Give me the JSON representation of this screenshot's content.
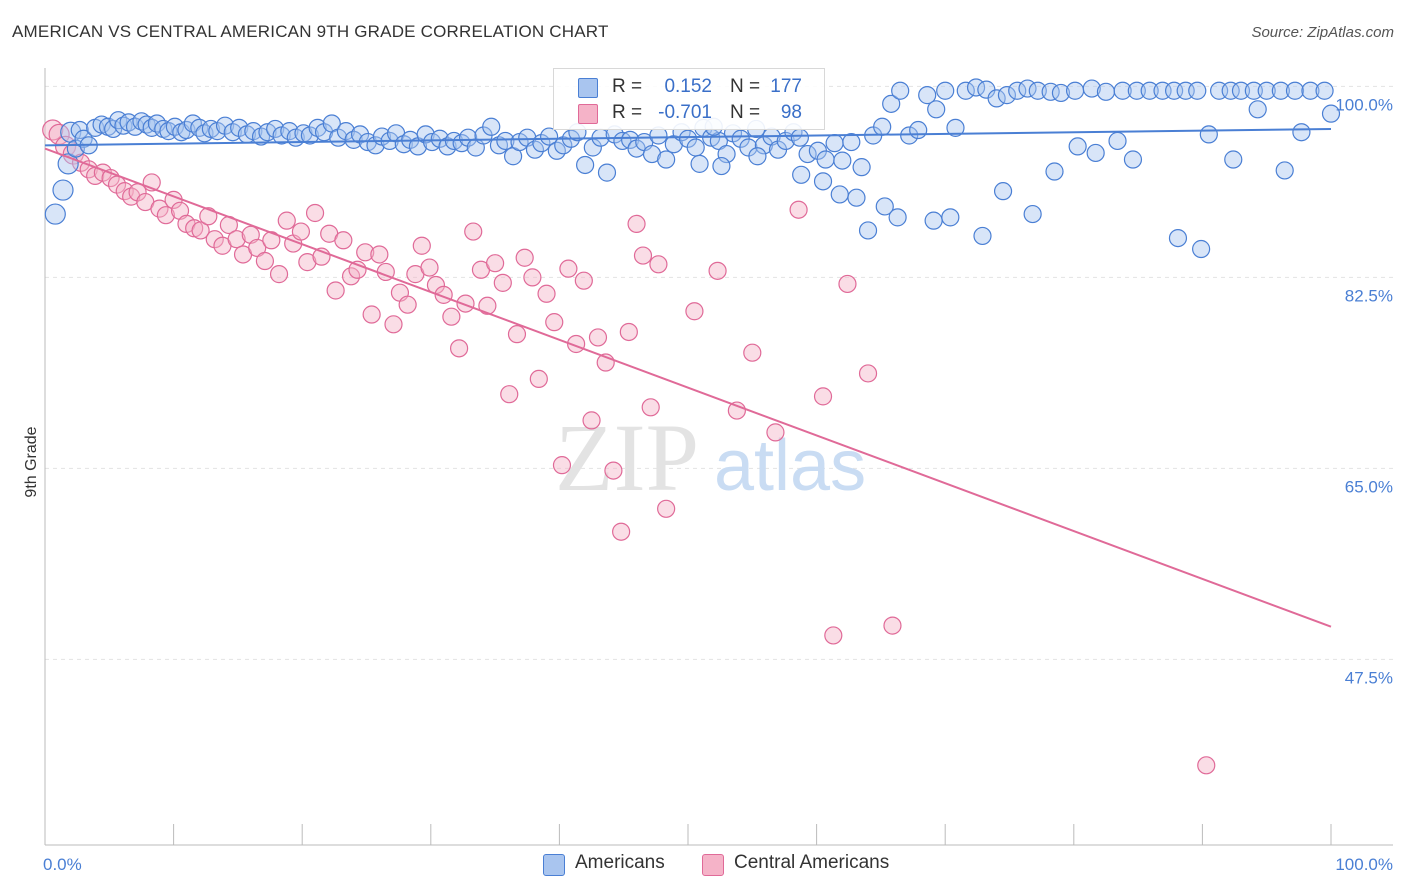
{
  "title": "AMERICAN VS CENTRAL AMERICAN 9TH GRADE CORRELATION CHART",
  "source": "Source: ZipAtlas.com",
  "watermark": {
    "zip": "ZIP",
    "atlas": "atlas"
  },
  "colors": {
    "blue": "#4a7fd4",
    "blue_fill": "#a9c5ef",
    "pink": "#e06a98",
    "pink_fill": "#f5b3c8"
  },
  "legend": {
    "rows": [
      {
        "r_label": "R =",
        "r_value": "0.152",
        "n_label": "N =",
        "n_value": "177"
      },
      {
        "r_label": "R =",
        "r_value": "-0.701",
        "n_label": "N =",
        "n_value": "98"
      }
    ]
  },
  "bottom_legend": {
    "americans": "Americans",
    "central_americans": "Central Americans"
  },
  "chart_data": {
    "type": "scatter",
    "xlabel": "",
    "ylabel": "9th Grade",
    "xlim": [
      0,
      100
    ],
    "ylim": [
      30.5,
      101.5
    ],
    "x_tick_labels": [
      "0.0%",
      "100.0%"
    ],
    "y_ticks": [
      47.5,
      65.0,
      82.5,
      100.0
    ],
    "y_tick_labels": [
      "47.5%",
      "65.0%",
      "82.5%",
      "100.0%"
    ],
    "series": [
      {
        "name": "Americans",
        "trend": {
          "x": [
            0,
            100
          ],
          "y": [
            94.6,
            96.1
          ]
        },
        "points": [
          [
            0.8,
            88.3
          ],
          [
            1.4,
            90.5
          ],
          [
            1.8,
            92.9
          ],
          [
            2.0,
            95.8
          ],
          [
            2.4,
            94.3
          ],
          [
            2.7,
            96.0
          ],
          [
            3.0,
            95.2
          ],
          [
            3.4,
            94.6
          ],
          [
            3.9,
            96.2
          ],
          [
            4.4,
            96.5
          ],
          [
            4.9,
            96.3
          ],
          [
            5.3,
            96.1
          ],
          [
            5.7,
            96.9
          ],
          [
            6.1,
            96.4
          ],
          [
            6.5,
            96.7
          ],
          [
            7.0,
            96.3
          ],
          [
            7.5,
            96.8
          ],
          [
            7.9,
            96.5
          ],
          [
            8.3,
            96.2
          ],
          [
            8.7,
            96.6
          ],
          [
            9.2,
            96.1
          ],
          [
            9.6,
            95.9
          ],
          [
            10.1,
            96.3
          ],
          [
            10.6,
            95.8
          ],
          [
            11.0,
            96.0
          ],
          [
            11.5,
            96.6
          ],
          [
            12.0,
            96.2
          ],
          [
            12.4,
            95.7
          ],
          [
            12.9,
            96.1
          ],
          [
            13.4,
            95.9
          ],
          [
            14.0,
            96.4
          ],
          [
            14.6,
            95.8
          ],
          [
            15.1,
            96.2
          ],
          [
            15.7,
            95.6
          ],
          [
            16.2,
            95.9
          ],
          [
            16.8,
            95.4
          ],
          [
            17.3,
            95.8
          ],
          [
            17.9,
            96.1
          ],
          [
            18.4,
            95.5
          ],
          [
            19.0,
            95.9
          ],
          [
            19.5,
            95.3
          ],
          [
            20.1,
            95.7
          ],
          [
            20.6,
            95.5
          ],
          [
            21.2,
            96.2
          ],
          [
            21.7,
            95.8
          ],
          [
            22.3,
            96.6
          ],
          [
            22.8,
            95.3
          ],
          [
            23.4,
            95.9
          ],
          [
            24.0,
            95.1
          ],
          [
            24.5,
            95.6
          ],
          [
            25.1,
            94.9
          ],
          [
            25.7,
            94.6
          ],
          [
            26.2,
            95.4
          ],
          [
            26.8,
            95.0
          ],
          [
            27.3,
            95.7
          ],
          [
            27.9,
            94.7
          ],
          [
            28.4,
            95.1
          ],
          [
            29.0,
            94.5
          ],
          [
            29.6,
            95.6
          ],
          [
            30.1,
            94.9
          ],
          [
            30.7,
            95.2
          ],
          [
            31.3,
            94.5
          ],
          [
            31.8,
            95.0
          ],
          [
            32.4,
            94.8
          ],
          [
            32.9,
            95.3
          ],
          [
            33.5,
            94.4
          ],
          [
            34.1,
            95.5
          ],
          [
            34.7,
            96.3
          ],
          [
            35.3,
            94.6
          ],
          [
            35.8,
            95.0
          ],
          [
            36.4,
            93.6
          ],
          [
            36.9,
            94.9
          ],
          [
            37.5,
            95.3
          ],
          [
            38.1,
            94.2
          ],
          [
            38.6,
            94.8
          ],
          [
            39.2,
            95.4
          ],
          [
            39.8,
            94.1
          ],
          [
            40.3,
            94.6
          ],
          [
            40.9,
            95.2
          ],
          [
            41.4,
            95.8
          ],
          [
            42.0,
            92.8
          ],
          [
            42.6,
            94.4
          ],
          [
            43.2,
            95.3
          ],
          [
            43.7,
            92.1
          ],
          [
            44.3,
            95.6
          ],
          [
            44.9,
            95.0
          ],
          [
            45.5,
            95.1
          ],
          [
            46.0,
            94.3
          ],
          [
            46.6,
            94.9
          ],
          [
            47.2,
            93.8
          ],
          [
            47.7,
            95.5
          ],
          [
            48.3,
            93.3
          ],
          [
            48.9,
            94.7
          ],
          [
            49.5,
            95.8
          ],
          [
            50.0,
            95.2
          ],
          [
            50.6,
            94.4
          ],
          [
            51.2,
            96.2
          ],
          [
            51.8,
            95.3
          ],
          [
            52.4,
            95.0
          ],
          [
            53.0,
            93.8
          ],
          [
            53.5,
            95.7
          ],
          [
            54.1,
            95.2
          ],
          [
            54.7,
            94.4
          ],
          [
            55.3,
            96.1
          ],
          [
            55.9,
            94.6
          ],
          [
            56.5,
            95.4
          ],
          [
            57.0,
            94.2
          ],
          [
            57.6,
            95.0
          ],
          [
            58.2,
            95.8
          ],
          [
            58.7,
            95.3
          ],
          [
            59.3,
            93.8
          ],
          [
            60.1,
            94.1
          ],
          [
            60.7,
            93.3
          ],
          [
            61.4,
            94.8
          ],
          [
            62.0,
            93.2
          ],
          [
            62.7,
            94.9
          ],
          [
            63.5,
            92.6
          ],
          [
            64.4,
            95.5
          ],
          [
            65.1,
            96.3
          ],
          [
            65.8,
            98.4
          ],
          [
            66.5,
            99.6
          ],
          [
            67.2,
            95.5
          ],
          [
            67.9,
            96.0
          ],
          [
            68.6,
            99.2
          ],
          [
            69.3,
            97.9
          ],
          [
            70.0,
            99.6
          ],
          [
            70.8,
            96.2
          ],
          [
            71.6,
            99.6
          ],
          [
            72.4,
            99.9
          ],
          [
            73.2,
            99.7
          ],
          [
            74.0,
            98.9
          ],
          [
            74.8,
            99.2
          ],
          [
            75.6,
            99.6
          ],
          [
            76.4,
            99.8
          ],
          [
            77.2,
            99.6
          ],
          [
            78.2,
            99.5
          ],
          [
            79.0,
            99.4
          ],
          [
            80.1,
            99.6
          ],
          [
            81.4,
            99.8
          ],
          [
            82.5,
            99.5
          ],
          [
            83.8,
            99.6
          ],
          [
            84.9,
            99.6
          ],
          [
            85.9,
            99.6
          ],
          [
            86.9,
            99.6
          ],
          [
            87.8,
            99.6
          ],
          [
            88.7,
            99.6
          ],
          [
            89.6,
            99.6
          ],
          [
            90.5,
            95.6
          ],
          [
            91.3,
            99.6
          ],
          [
            92.2,
            99.6
          ],
          [
            93.0,
            99.6
          ],
          [
            94.0,
            99.6
          ],
          [
            95.0,
            99.6
          ],
          [
            96.1,
            99.6
          ],
          [
            97.2,
            99.6
          ],
          [
            98.4,
            99.6
          ],
          [
            99.5,
            99.6
          ],
          [
            100.0,
            97.5
          ],
          [
            50.9,
            92.9
          ],
          [
            52.6,
            92.7
          ],
          [
            55.4,
            93.6
          ],
          [
            58.8,
            91.9
          ],
          [
            60.5,
            91.3
          ],
          [
            61.8,
            90.1
          ],
          [
            63.1,
            89.8
          ],
          [
            64.0,
            86.8
          ],
          [
            65.3,
            89.0
          ],
          [
            66.3,
            88.0
          ],
          [
            69.1,
            87.7
          ],
          [
            70.4,
            88.0
          ],
          [
            72.9,
            86.3
          ],
          [
            74.5,
            90.4
          ],
          [
            76.8,
            88.3
          ],
          [
            78.5,
            92.2
          ],
          [
            80.3,
            94.5
          ],
          [
            81.7,
            93.9
          ],
          [
            83.4,
            95.0
          ],
          [
            84.6,
            93.3
          ],
          [
            88.1,
            86.1
          ],
          [
            89.9,
            85.1
          ],
          [
            92.4,
            93.3
          ],
          [
            94.3,
            97.9
          ],
          [
            96.4,
            92.3
          ],
          [
            97.7,
            95.8
          ],
          [
            52.0,
            96.3
          ]
        ]
      },
      {
        "name": "Central Americans",
        "trend": {
          "x": [
            0,
            100
          ],
          "y": [
            94.3,
            50.5
          ]
        },
        "points": [
          [
            0.6,
            96.0
          ],
          [
            1.1,
            95.6
          ],
          [
            1.6,
            94.5
          ],
          [
            2.2,
            93.8
          ],
          [
            2.8,
            93.0
          ],
          [
            3.4,
            92.4
          ],
          [
            3.9,
            91.8
          ],
          [
            4.5,
            92.1
          ],
          [
            5.1,
            91.6
          ],
          [
            5.6,
            91.0
          ],
          [
            6.2,
            90.4
          ],
          [
            6.7,
            89.9
          ],
          [
            7.2,
            90.3
          ],
          [
            7.8,
            89.4
          ],
          [
            8.3,
            91.2
          ],
          [
            8.9,
            88.8
          ],
          [
            9.4,
            88.2
          ],
          [
            10.0,
            89.6
          ],
          [
            10.5,
            88.6
          ],
          [
            11.0,
            87.4
          ],
          [
            11.6,
            87.0
          ],
          [
            12.1,
            86.8
          ],
          [
            12.7,
            88.1
          ],
          [
            13.2,
            86.0
          ],
          [
            13.8,
            85.4
          ],
          [
            14.3,
            87.3
          ],
          [
            14.9,
            86.0
          ],
          [
            15.4,
            84.6
          ],
          [
            16.0,
            86.4
          ],
          [
            16.5,
            85.2
          ],
          [
            17.1,
            84.0
          ],
          [
            17.6,
            85.9
          ],
          [
            18.2,
            82.8
          ],
          [
            18.8,
            87.7
          ],
          [
            19.3,
            85.6
          ],
          [
            19.9,
            86.7
          ],
          [
            20.4,
            83.9
          ],
          [
            21.0,
            88.4
          ],
          [
            21.5,
            84.4
          ],
          [
            22.1,
            86.5
          ],
          [
            22.6,
            81.3
          ],
          [
            23.2,
            85.9
          ],
          [
            23.8,
            82.6
          ],
          [
            24.3,
            83.2
          ],
          [
            24.9,
            84.8
          ],
          [
            25.4,
            79.1
          ],
          [
            26.0,
            84.6
          ],
          [
            26.5,
            83.0
          ],
          [
            27.1,
            78.2
          ],
          [
            27.6,
            81.1
          ],
          [
            28.2,
            80.0
          ],
          [
            28.8,
            82.8
          ],
          [
            29.3,
            85.4
          ],
          [
            29.9,
            83.4
          ],
          [
            30.4,
            81.8
          ],
          [
            31.0,
            80.9
          ],
          [
            31.6,
            78.9
          ],
          [
            32.2,
            76.0
          ],
          [
            32.7,
            80.1
          ],
          [
            33.3,
            86.7
          ],
          [
            33.9,
            83.2
          ],
          [
            34.4,
            79.9
          ],
          [
            35.0,
            83.8
          ],
          [
            35.6,
            82.0
          ],
          [
            36.1,
            71.8
          ],
          [
            36.7,
            77.3
          ],
          [
            37.3,
            84.3
          ],
          [
            37.9,
            82.5
          ],
          [
            38.4,
            73.2
          ],
          [
            39.0,
            81.0
          ],
          [
            39.6,
            78.4
          ],
          [
            40.2,
            65.3
          ],
          [
            40.7,
            83.3
          ],
          [
            41.3,
            76.4
          ],
          [
            41.9,
            82.2
          ],
          [
            42.5,
            69.4
          ],
          [
            43.0,
            77.0
          ],
          [
            43.6,
            74.7
          ],
          [
            44.2,
            64.8
          ],
          [
            44.8,
            59.2
          ],
          [
            45.4,
            77.5
          ],
          [
            46.0,
            87.4
          ],
          [
            46.5,
            84.5
          ],
          [
            47.1,
            70.6
          ],
          [
            47.7,
            83.7
          ],
          [
            48.3,
            61.3
          ],
          [
            50.5,
            79.4
          ],
          [
            52.3,
            83.1
          ],
          [
            53.8,
            70.3
          ],
          [
            55.0,
            75.6
          ],
          [
            56.8,
            68.3
          ],
          [
            58.6,
            88.7
          ],
          [
            60.5,
            71.6
          ],
          [
            61.3,
            49.7
          ],
          [
            62.4,
            81.9
          ],
          [
            64.0,
            73.7
          ],
          [
            65.9,
            50.6
          ],
          [
            90.3,
            37.8
          ]
        ]
      }
    ]
  }
}
